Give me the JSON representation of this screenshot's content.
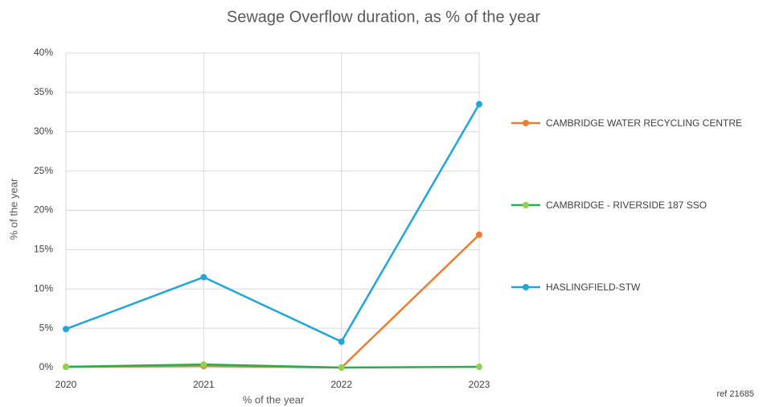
{
  "chart_data": {
    "type": "line",
    "title": "Sewage Overflow duration, as % of the year",
    "x_label": "% of the year",
    "y_label": "% of the year",
    "annotation": "ref 21685",
    "categories": [
      "2020",
      "2021",
      "2022",
      "2023"
    ],
    "series": [
      {
        "name": "CAMBRIDGE WATER RECYCLING CENTRE",
        "color": "#ED7D31",
        "marker_color": "#ED7D31",
        "values": [
          0.1,
          0.2,
          0,
          16.9
        ]
      },
      {
        "name": "CAMBRIDGE - RIVERSIDE 187 SSO",
        "color": "#22B14C",
        "marker_color": "#92D050",
        "values": [
          0.1,
          0.4,
          0,
          0.1
        ]
      },
      {
        "name": "HASLINGFIELD-STW",
        "color": "#1FA7DA",
        "marker_color": "#1FA7DA",
        "values": [
          4.9,
          11.5,
          3.3,
          33.5
        ]
      }
    ],
    "ylim": [
      0,
      40
    ],
    "yticks": [
      {
        "value": 0,
        "label": "0%"
      },
      {
        "value": 5,
        "label": "5%"
      },
      {
        "value": 10,
        "label": "10%"
      },
      {
        "value": 15,
        "label": "15%"
      },
      {
        "value": 20,
        "label": "20%"
      },
      {
        "value": 25,
        "label": "25%"
      },
      {
        "value": 30,
        "label": "30%"
      },
      {
        "value": 35,
        "label": "35%"
      },
      {
        "value": 40,
        "label": "40%"
      }
    ],
    "grid": true,
    "legend": "right"
  }
}
